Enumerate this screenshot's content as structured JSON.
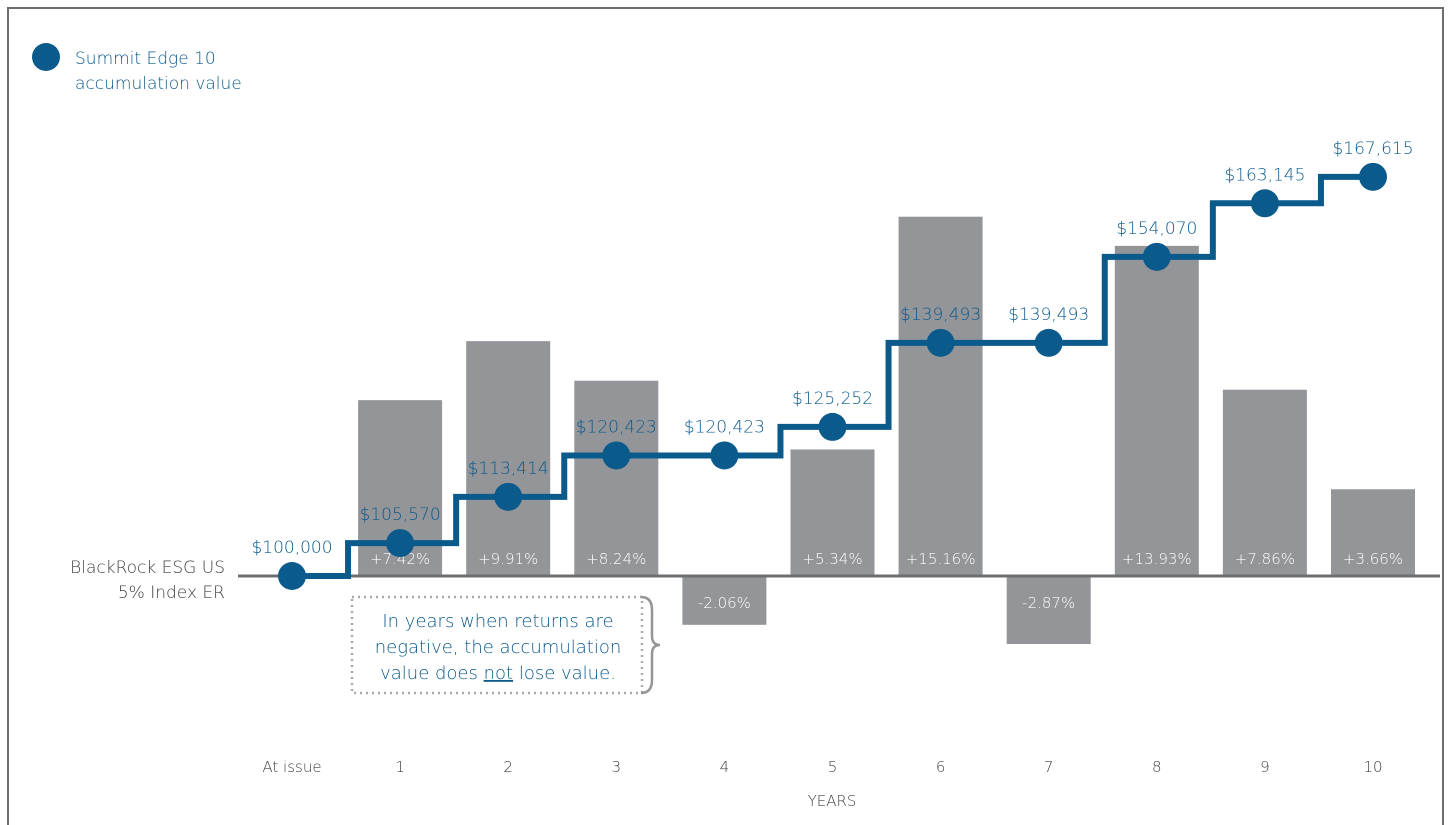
{
  "chart_data": {
    "type": "bar+step-line",
    "legend": {
      "marker_color": "#0b5a8c",
      "line1": "Summit Edge 10",
      "line2": "accumulation value"
    },
    "baseline_label": {
      "line1": "BlackRock ESG US",
      "line2": "5% Index ER"
    },
    "xlabel": "YEARS",
    "ylim_pct": [
      -8,
      25
    ],
    "categories": [
      "1",
      "2",
      "3",
      "4",
      "5",
      "6",
      "7",
      "8",
      "9",
      "10"
    ],
    "bar_series": {
      "values_pct": [
        7.42,
        9.91,
        8.24,
        -2.06,
        5.34,
        15.16,
        -2.87,
        13.93,
        7.86,
        3.66
      ],
      "labels": [
        "+7.42%",
        "+9.91%",
        "+8.24%",
        "-2.06%",
        "+5.34%",
        "+15.16%",
        "-2.87%",
        "+13.93%",
        "+7.86%",
        "+3.66%"
      ],
      "color": "#939598"
    },
    "line_series": {
      "x": [
        "At issue",
        "1",
        "2",
        "3",
        "4",
        "5",
        "6",
        "7",
        "8",
        "9",
        "10"
      ],
      "values": [
        100000,
        105570,
        113414,
        120423,
        120423,
        125252,
        139493,
        139493,
        154070,
        163145,
        167615
      ],
      "labels": [
        "$100,000",
        "$105,570",
        "$113,414",
        "$120,423",
        "$120,423",
        "$125,252",
        "$139,493",
        "$139,493",
        "$154,070",
        "$163,145",
        "$167,615"
      ],
      "color": "#0b5a8c"
    },
    "annotation": {
      "line1": "In years when returns are",
      "line2": "negative, the accumulation",
      "line3_a": "value does ",
      "line3_underlined": "not",
      "line3_b": " lose value."
    }
  }
}
